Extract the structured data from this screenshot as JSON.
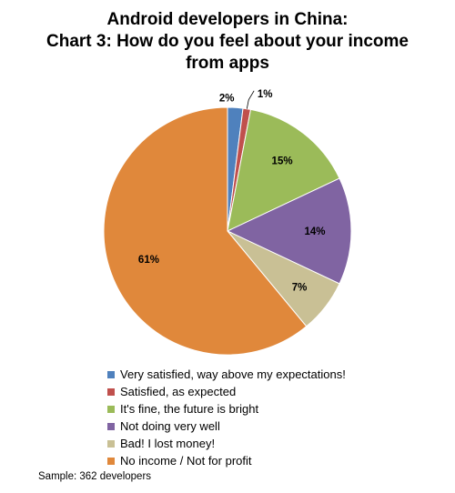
{
  "chart_data": {
    "type": "pie",
    "title_lines": [
      "Android developers in China:",
      "Chart 3: How do you feel about your income",
      "from apps"
    ],
    "categories": [
      "Very satisfied, way above my expectations!",
      "Satisfied, as expected",
      "It's fine, the future is bright",
      "Not doing very well",
      "Bad! I lost money!",
      "No income / Not for profit"
    ],
    "values": [
      2,
      1,
      15,
      14,
      7,
      61
    ],
    "labels": [
      "2%",
      "1%",
      "15%",
      "14%",
      "7%",
      "61%"
    ],
    "colors": [
      "#4F81BD",
      "#C0504D",
      "#9BBB59",
      "#8064A2",
      "#C9C095",
      "#E0883B"
    ],
    "legend_position": "bottom",
    "note": "Sample: 362 developers"
  }
}
